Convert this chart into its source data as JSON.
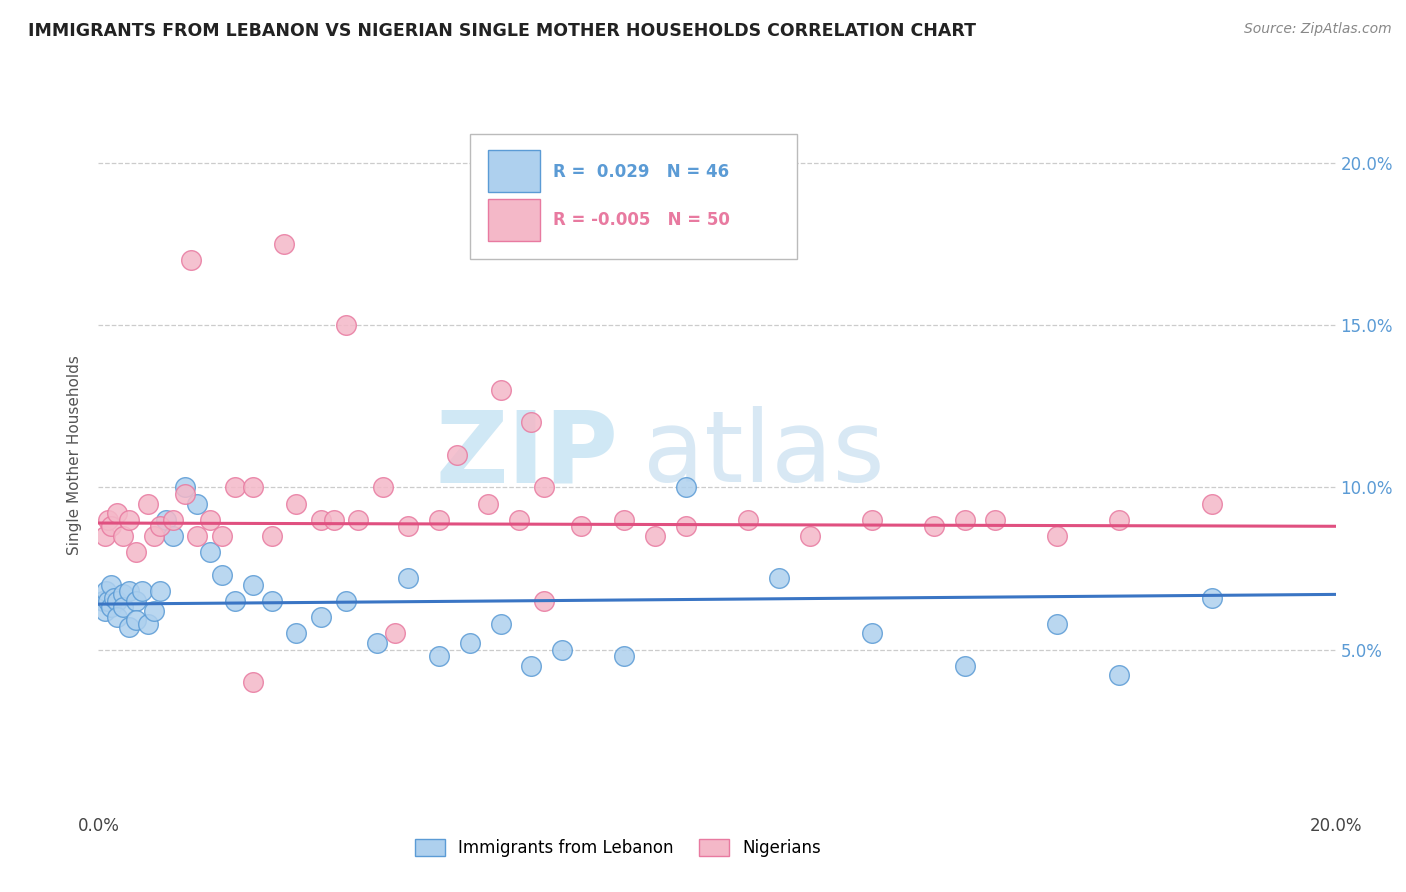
{
  "title": "IMMIGRANTS FROM LEBANON VS NIGERIAN SINGLE MOTHER HOUSEHOLDS CORRELATION CHART",
  "source": "Source: ZipAtlas.com",
  "ylabel": "Single Mother Households",
  "xlim": [
    0.0,
    0.2
  ],
  "ylim": [
    0.0,
    0.22
  ],
  "yticks": [
    0.05,
    0.1,
    0.15,
    0.2
  ],
  "ytick_labels": [
    "5.0%",
    "10.0%",
    "15.0%",
    "20.0%"
  ],
  "blue_fill": "#aed0ee",
  "blue_edge": "#5b9bd5",
  "pink_fill": "#f4b8c8",
  "pink_edge": "#e87aa0",
  "blue_line": "#3a75c4",
  "pink_line": "#e05080",
  "grid_color": "#cccccc",
  "tick_label_color": "#5b9bd5",
  "watermark_color": "#d0e8f5",
  "watermark": "ZIPatlas",
  "legend_r1": "R =  0.029",
  "legend_n1": "N = 46",
  "legend_r2": "R = -0.005",
  "legend_n2": "N = 50",
  "lebanon_x": [
    0.0008,
    0.001,
    0.0012,
    0.0015,
    0.002,
    0.002,
    0.0025,
    0.003,
    0.003,
    0.004,
    0.004,
    0.005,
    0.005,
    0.006,
    0.006,
    0.007,
    0.008,
    0.009,
    0.01,
    0.011,
    0.012,
    0.014,
    0.016,
    0.018,
    0.02,
    0.022,
    0.025,
    0.028,
    0.032,
    0.036,
    0.04,
    0.045,
    0.05,
    0.055,
    0.06,
    0.065,
    0.07,
    0.075,
    0.085,
    0.095,
    0.11,
    0.125,
    0.14,
    0.155,
    0.165,
    0.18
  ],
  "lebanon_y": [
    0.065,
    0.062,
    0.068,
    0.065,
    0.07,
    0.063,
    0.066,
    0.065,
    0.06,
    0.067,
    0.063,
    0.068,
    0.057,
    0.065,
    0.059,
    0.068,
    0.058,
    0.062,
    0.068,
    0.09,
    0.085,
    0.1,
    0.095,
    0.08,
    0.073,
    0.065,
    0.07,
    0.065,
    0.055,
    0.06,
    0.065,
    0.052,
    0.072,
    0.048,
    0.052,
    0.058,
    0.045,
    0.05,
    0.048,
    0.1,
    0.072,
    0.055,
    0.045,
    0.058,
    0.042,
    0.066
  ],
  "nigerian_x": [
    0.001,
    0.0015,
    0.002,
    0.003,
    0.004,
    0.005,
    0.006,
    0.008,
    0.009,
    0.01,
    0.012,
    0.014,
    0.016,
    0.018,
    0.02,
    0.022,
    0.025,
    0.028,
    0.032,
    0.036,
    0.038,
    0.042,
    0.046,
    0.05,
    0.055,
    0.058,
    0.063,
    0.068,
    0.072,
    0.078,
    0.085,
    0.09,
    0.095,
    0.105,
    0.115,
    0.125,
    0.135,
    0.145,
    0.155,
    0.165,
    0.07,
    0.065,
    0.04,
    0.03,
    0.015,
    0.025,
    0.048,
    0.072,
    0.14,
    0.18
  ],
  "nigerian_y": [
    0.085,
    0.09,
    0.088,
    0.092,
    0.085,
    0.09,
    0.08,
    0.095,
    0.085,
    0.088,
    0.09,
    0.098,
    0.085,
    0.09,
    0.085,
    0.1,
    0.1,
    0.085,
    0.095,
    0.09,
    0.09,
    0.09,
    0.1,
    0.088,
    0.09,
    0.11,
    0.095,
    0.09,
    0.1,
    0.088,
    0.09,
    0.085,
    0.088,
    0.09,
    0.085,
    0.09,
    0.088,
    0.09,
    0.085,
    0.09,
    0.12,
    0.13,
    0.15,
    0.175,
    0.17,
    0.04,
    0.055,
    0.065,
    0.09,
    0.095
  ],
  "blue_trend": [
    0.0,
    0.2,
    0.064,
    0.067
  ],
  "pink_trend": [
    0.0,
    0.2,
    0.089,
    0.088
  ]
}
